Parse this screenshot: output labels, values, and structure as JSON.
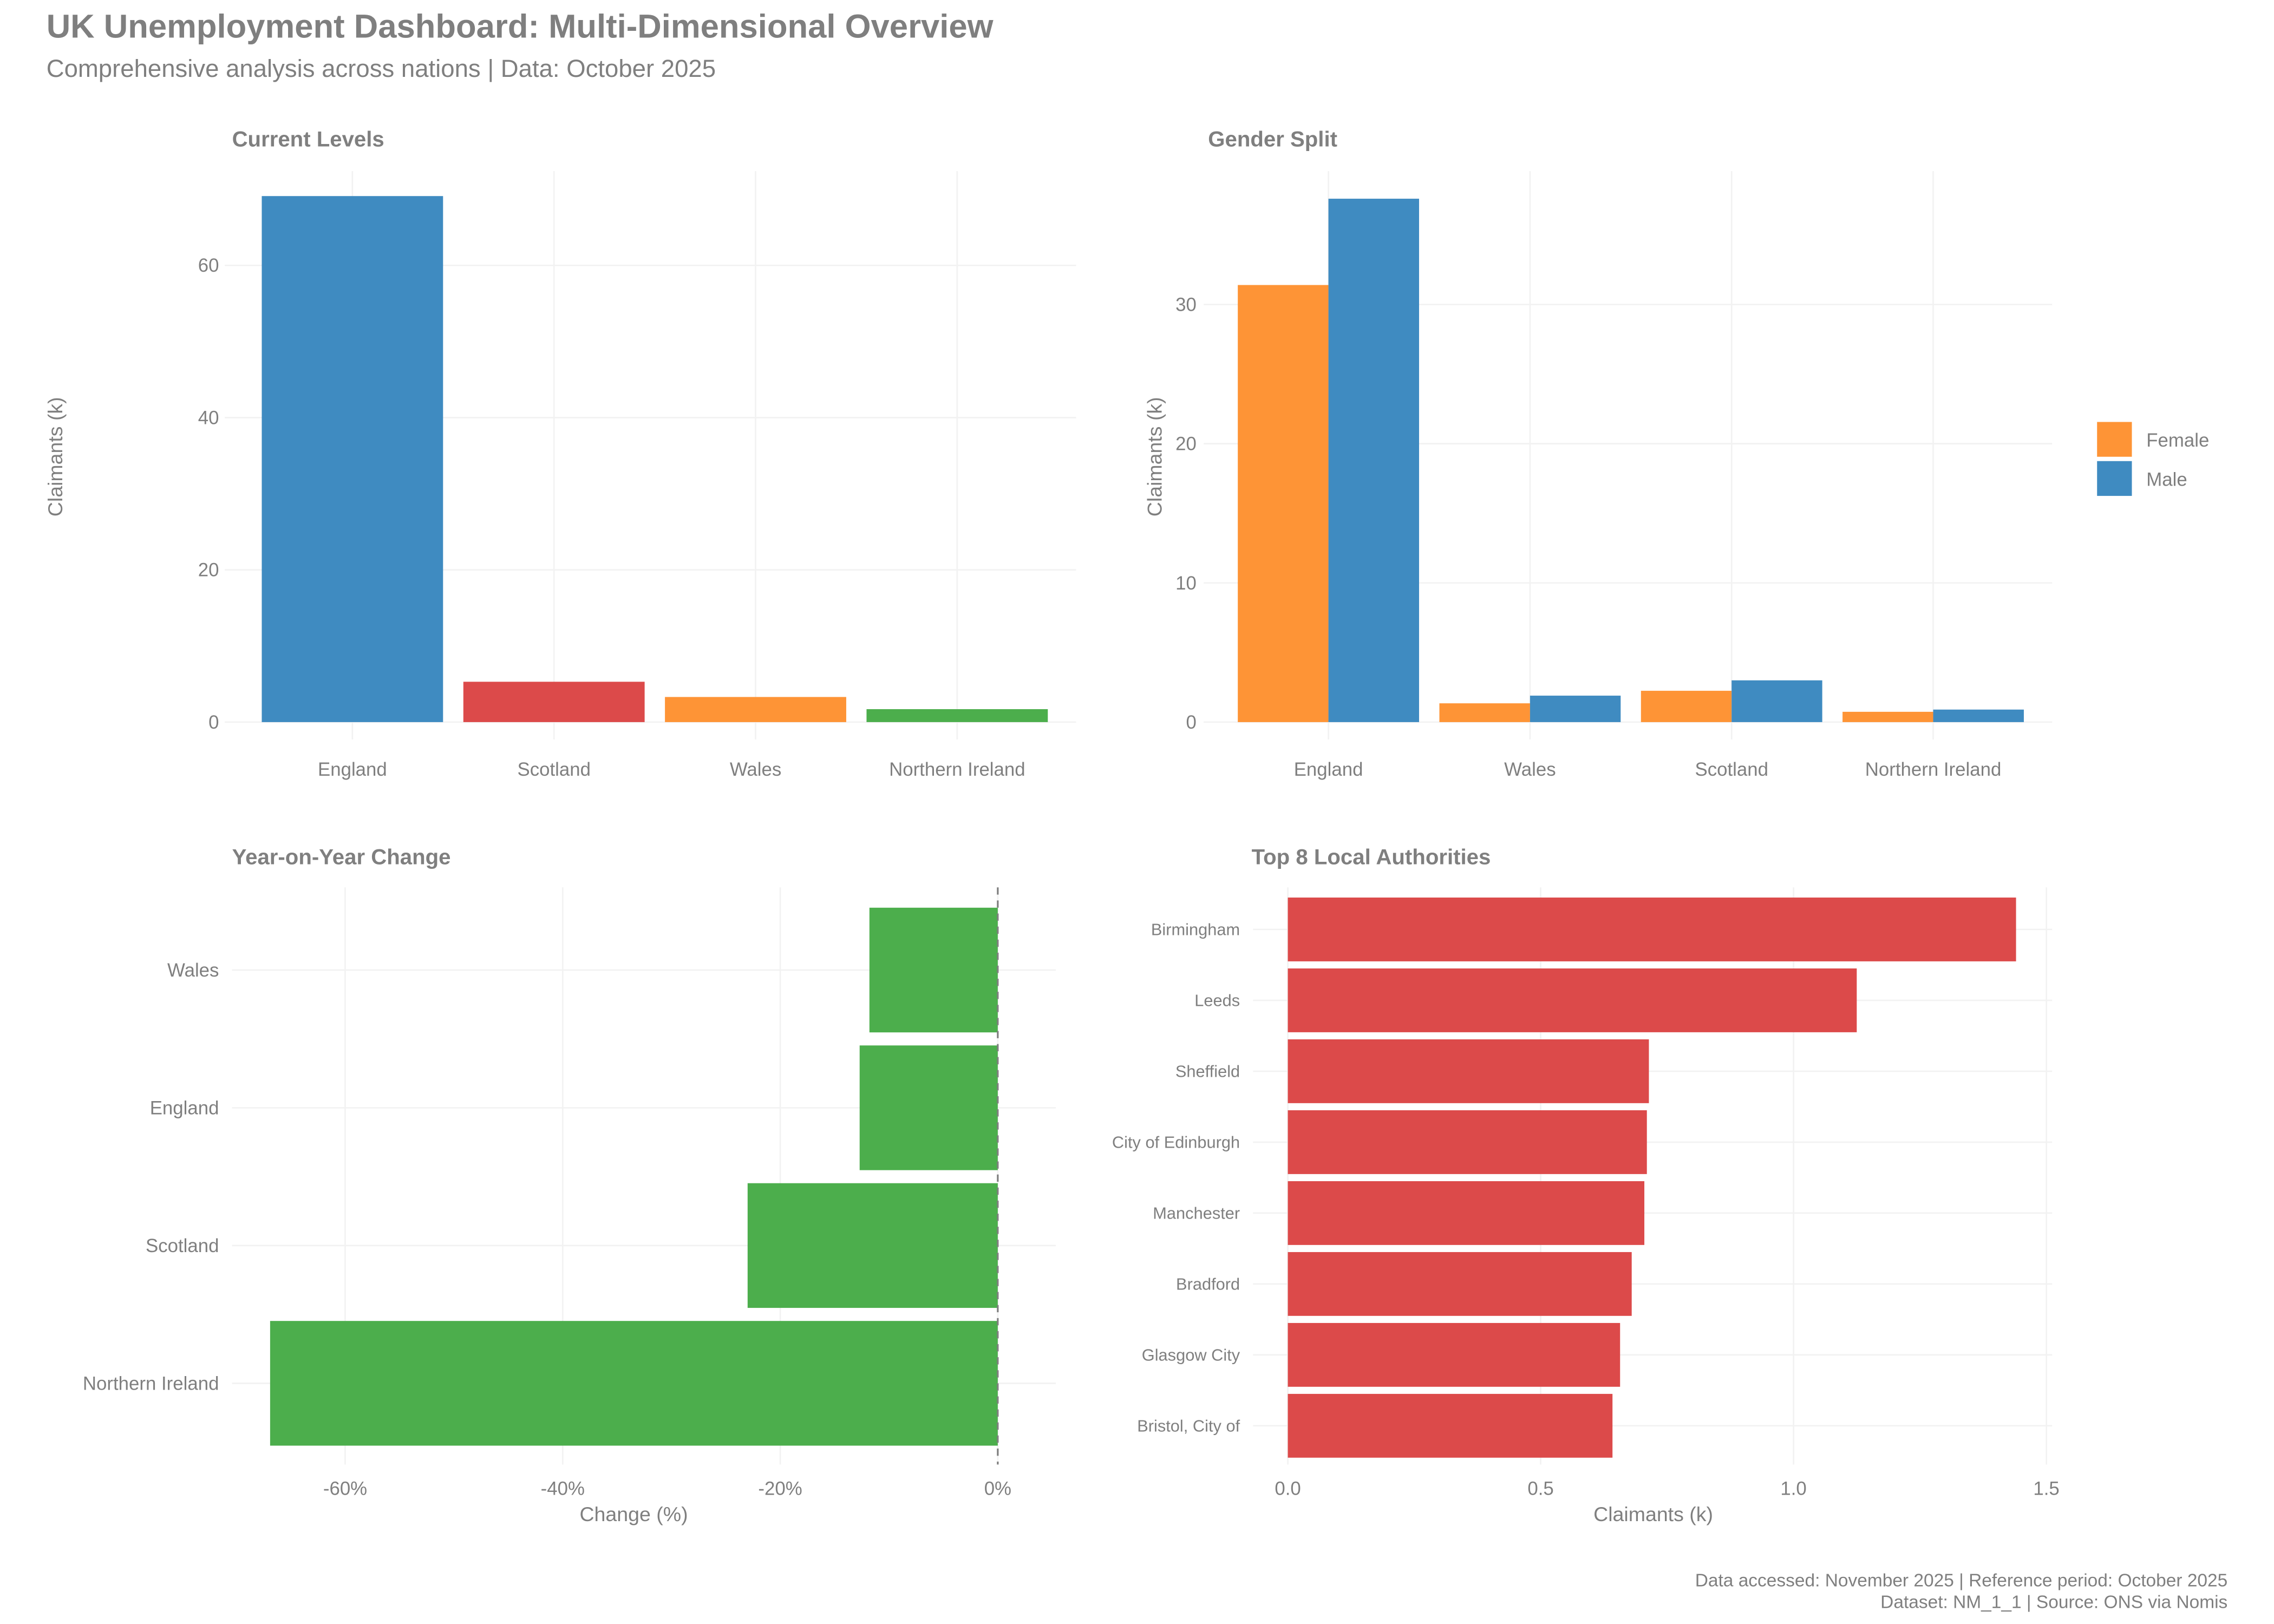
{
  "header": {
    "title": "UK Unemployment Dashboard: Multi-Dimensional Overview",
    "subtitle": "Comprehensive analysis across nations | Data: October 2025"
  },
  "caption": {
    "line1": "Data accessed: November 2025 | Reference period: October 2025",
    "line2": "Dataset: NM_1_1 | Source: ONS via Nomis"
  },
  "chart_data": [
    {
      "type": "bar",
      "title": "Current Levels",
      "xlabel": "",
      "ylabel": "Claimants (k)",
      "categories": [
        "England",
        "Scotland",
        "Wales",
        "Northern Ireland"
      ],
      "values": [
        69.1,
        5.3,
        3.3,
        1.7
      ],
      "colors": [
        "#3f8bc1",
        "#dc4a4a",
        "#fe9436",
        "#4cae4c"
      ],
      "yticks": [
        0,
        20,
        40,
        60
      ],
      "ylim": [
        0,
        72
      ],
      "grid": true
    },
    {
      "type": "bar",
      "title": "Gender Split",
      "xlabel": "",
      "ylabel": "Claimants (k)",
      "categories": [
        "England",
        "Wales",
        "Scotland",
        "Northern Ireland"
      ],
      "series": [
        {
          "name": "Female",
          "color": "#fe9436",
          "values": [
            31.4,
            1.35,
            2.25,
            0.74
          ]
        },
        {
          "name": "Male",
          "color": "#3f8bc1",
          "values": [
            37.6,
            1.9,
            3.0,
            0.9
          ]
        }
      ],
      "yticks": [
        0,
        10,
        20,
        30
      ],
      "ylim": [
        0,
        39
      ],
      "legend": "right",
      "grid": true
    },
    {
      "type": "bar",
      "orientation": "horizontal",
      "title": "Year-on-Year Change",
      "xlabel": "Change (%)",
      "ylabel": "",
      "categories": [
        "Wales",
        "England",
        "Scotland",
        "Northern Ireland"
      ],
      "values": [
        -11.8,
        -12.7,
        -23.0,
        -66.9
      ],
      "color": "#4cae4c",
      "xticks": [
        -60,
        -40,
        -20,
        0
      ],
      "xtick_labels": [
        "-60%",
        "-40%",
        "-20%",
        "0%"
      ],
      "xlim": [
        -70,
        5
      ],
      "reference_line": 0,
      "grid": true
    },
    {
      "type": "bar",
      "orientation": "horizontal",
      "title": "Top 8 Local Authorities",
      "xlabel": "Claimants (k)",
      "ylabel": "",
      "categories": [
        "Birmingham",
        "Leeds",
        "Sheffield",
        "City of Edinburgh",
        "Manchester",
        "Bradford",
        "Glasgow City",
        "Bristol, City of"
      ],
      "values": [
        1.44,
        1.125,
        0.714,
        0.71,
        0.705,
        0.68,
        0.657,
        0.642
      ],
      "color": "#dc4a4a",
      "xticks": [
        0,
        0.5,
        1.0,
        1.5
      ],
      "xtick_labels": [
        "0.0",
        "0.5",
        "1.0",
        "1.5"
      ],
      "xlim": [
        0,
        1.5
      ],
      "grid": true
    }
  ]
}
